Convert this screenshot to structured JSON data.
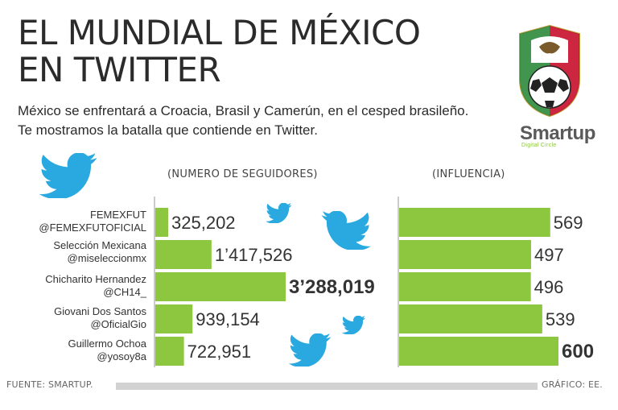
{
  "header": {
    "title_line1": "EL MUNDIAL DE MÉXICO",
    "title_line2": "EN TWITTER",
    "subtitle_line1": "México se enfrentará a Croacia, Brasil y Camerún, en el cesped brasileño.",
    "subtitle_line2": "Te mostramos la batalla que contiende en Twitter."
  },
  "brand": {
    "name": "Smartup",
    "tagline": "Digital Circle"
  },
  "footer": {
    "source": "FUENTE: SMARTUP.",
    "credit": "GRÁFICO: EE."
  },
  "colors": {
    "bar": "#8dc63f",
    "axis": "#999999",
    "twitter": "#29a9e0",
    "crest_green": "#2e8b3d",
    "crest_red": "#c8102e"
  },
  "icons": [
    "twitter-bird-icon",
    "mexico-crest-icon"
  ],
  "chart_data": [
    {
      "type": "bar",
      "orientation": "horizontal",
      "title": "(NUMERO DE SEGUIDORES)",
      "categories": [
        {
          "name": "FEMEXFUT",
          "handle": "@FEMEXFUTOFICIAL"
        },
        {
          "name": "Selección Mexicana",
          "handle": "@miseleccionmx"
        },
        {
          "name": "Chicharito Hernandez",
          "handle": "@CH14_"
        },
        {
          "name": "Giovani Dos Santos",
          "handle": "@OficialGio"
        },
        {
          "name": "Guillermo Ochoa",
          "handle": "@yosoy8a"
        }
      ],
      "values": [
        325202,
        1417526,
        3288019,
        939154,
        722951
      ],
      "value_labels": [
        "325,202",
        "1’417,526",
        "3’288,019",
        "939,154",
        "722,951"
      ],
      "highlight_index": 2,
      "xlim": [
        0,
        3288019
      ]
    },
    {
      "type": "bar",
      "orientation": "horizontal",
      "title": "(INFLUENCIA)",
      "values": [
        569,
        497,
        496,
        539,
        600
      ],
      "value_labels": [
        "569",
        "497",
        "496",
        "539",
        "600"
      ],
      "highlight_index": 4,
      "xlim": [
        0,
        600
      ]
    }
  ]
}
